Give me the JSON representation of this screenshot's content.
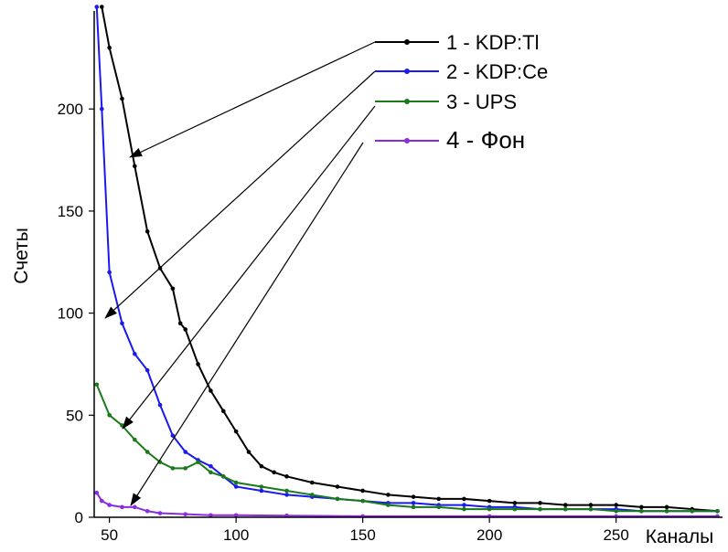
{
  "chart_data": {
    "type": "line",
    "title": "",
    "xlabel": "Каналы",
    "ylabel": "Счеты",
    "xlim": [
      44,
      292
    ],
    "ylim": [
      0,
      248
    ],
    "xticks": [
      50,
      100,
      150,
      200,
      250
    ],
    "yticks": [
      0,
      50,
      100,
      150,
      200
    ],
    "grid": false,
    "legend_position": "top-right",
    "series": [
      {
        "name": "1 - KDP:Tl",
        "color": "#000000",
        "x": [
          47,
          50,
          55,
          60,
          65,
          70,
          75,
          78,
          80,
          85,
          90,
          95,
          100,
          105,
          110,
          115,
          120,
          130,
          140,
          150,
          160,
          170,
          180,
          190,
          200,
          210,
          220,
          230,
          240,
          250,
          260,
          270,
          280,
          290
        ],
        "y": [
          250,
          230,
          205,
          172,
          140,
          122,
          112,
          95,
          92,
          75,
          62,
          52,
          42,
          32,
          25,
          22,
          20,
          17,
          15,
          13,
          11,
          10,
          9,
          9,
          8,
          7,
          7,
          6,
          6,
          6,
          5,
          5,
          4,
          3
        ]
      },
      {
        "name": "2 - KDP:Ce",
        "color": "#1a1aee",
        "x": [
          45,
          47,
          50,
          55,
          60,
          65,
          70,
          75,
          80,
          85,
          90,
          95,
          100,
          110,
          120,
          130,
          140,
          150,
          160,
          170,
          180,
          190,
          200,
          210,
          220,
          230,
          240,
          250,
          260,
          270,
          280,
          290
        ],
        "y": [
          250,
          200,
          120,
          95,
          80,
          72,
          55,
          40,
          32,
          28,
          25,
          20,
          15,
          13,
          11,
          10,
          9,
          8,
          7,
          7,
          6,
          6,
          5,
          5,
          4,
          4,
          4,
          4,
          3,
          3,
          3,
          3
        ]
      },
      {
        "name": "3 - UPS",
        "color": "#1a7a1a",
        "x": [
          45,
          50,
          55,
          60,
          65,
          70,
          75,
          80,
          85,
          90,
          95,
          100,
          110,
          120,
          130,
          140,
          150,
          160,
          170,
          180,
          190,
          200,
          210,
          220,
          230,
          240,
          250,
          260,
          270,
          280,
          290
        ],
        "y": [
          65,
          50,
          45,
          38,
          32,
          27,
          24,
          24,
          27,
          22,
          20,
          17,
          15,
          13,
          11,
          9,
          8,
          6,
          5,
          5,
          4,
          4,
          4,
          4,
          4,
          4,
          3,
          3,
          3,
          3,
          3
        ]
      },
      {
        "name": "4 - Фон",
        "color": "#8a2be2",
        "x": [
          45,
          47,
          50,
          55,
          60,
          65,
          70,
          80,
          90,
          100,
          120,
          150,
          200,
          250,
          290
        ],
        "y": [
          12,
          8,
          6,
          5,
          5,
          3,
          2,
          1.5,
          1,
          1,
          0.8,
          0.5,
          0.5,
          0.5,
          0.5
        ]
      }
    ]
  },
  "legend": {
    "entries": [
      {
        "label": "1 - KDP:Tl",
        "color": "#000000"
      },
      {
        "label": "2 - KDP:Ce",
        "color": "#1a1aee"
      },
      {
        "label": "3 - UPS",
        "color": "#1a7a1a"
      },
      {
        "label": "4 - Фон",
        "color": "#8a2be2"
      }
    ]
  }
}
